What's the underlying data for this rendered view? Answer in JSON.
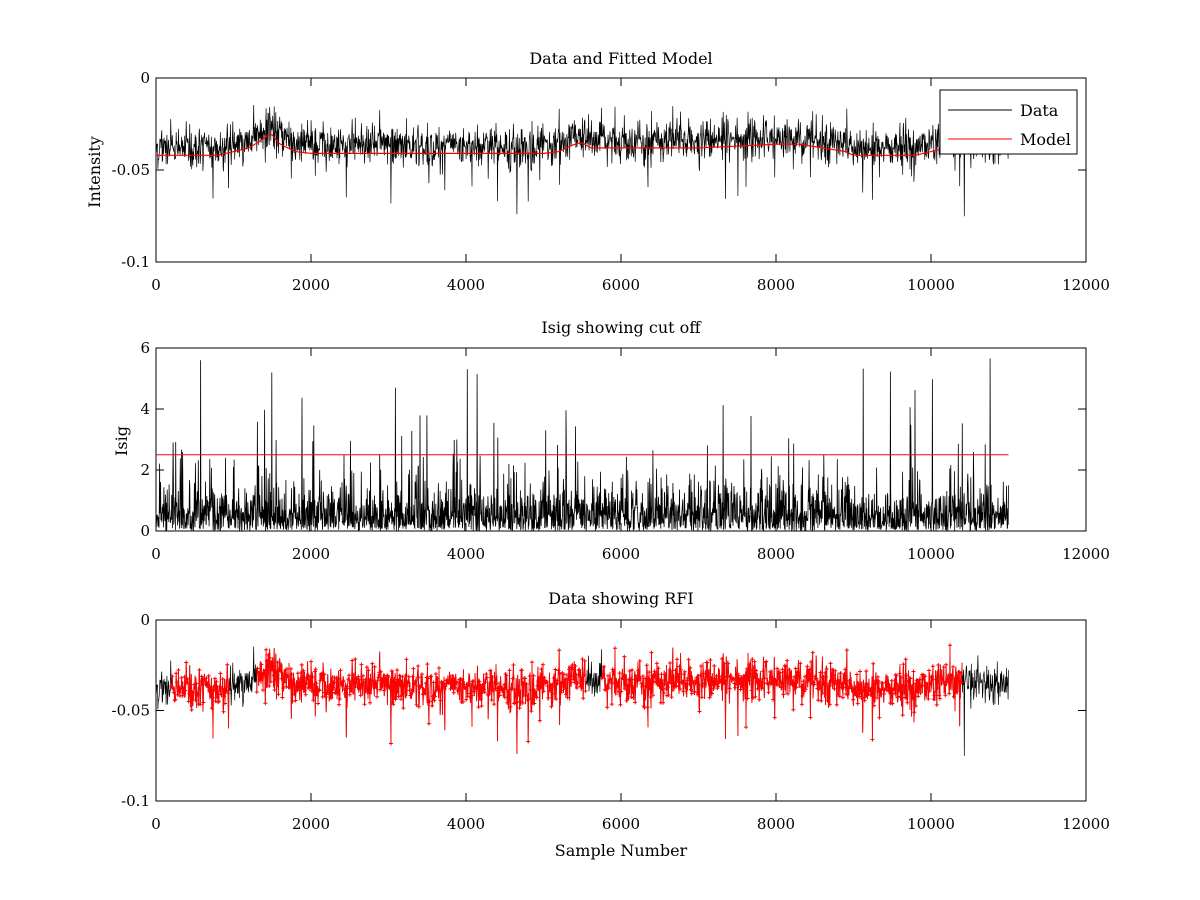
{
  "chart_data": [
    {
      "id": "top",
      "type": "line",
      "title": "Data and Fitted Model",
      "xlabel": "",
      "ylabel": "Intensity",
      "xlim": [
        0,
        12000
      ],
      "ylim": [
        -0.1,
        0
      ],
      "xticks": [
        0,
        2000,
        4000,
        6000,
        8000,
        10000,
        12000
      ],
      "xtick_labels": [
        "0",
        "2000",
        "4000",
        "6000",
        "8000",
        "10000",
        "12000"
      ],
      "yticks": [
        -0.1,
        -0.05,
        0
      ],
      "ytick_labels": [
        "-0.1",
        "-0.05",
        "0"
      ],
      "legend": {
        "position": "top-right",
        "entries": [
          "Data",
          "Model"
        ]
      },
      "series": [
        {
          "name": "Data",
          "color": "#000000",
          "style": "noisy-line",
          "samples": 11000,
          "x_end": 11000,
          "noise": {
            "low": 0.006,
            "high": 0.007,
            "spike_rate": 0.02,
            "spike_depth": 0.035
          }
        },
        {
          "name": "Model",
          "color": "#ff0000",
          "x": [
            0,
            800,
            1000,
            1200,
            1350,
            1480,
            1600,
            1800,
            2000,
            2400,
            3000,
            4000,
            5000,
            5200,
            5400,
            5500,
            5600,
            6000,
            7000,
            8000,
            8300,
            8600,
            8900,
            9000,
            9800,
            10000,
            10100,
            10300
          ],
          "y": [
            -0.042,
            -0.042,
            -0.04,
            -0.038,
            -0.034,
            -0.03,
            -0.036,
            -0.04,
            -0.041,
            -0.041,
            -0.041,
            -0.041,
            -0.041,
            -0.04,
            -0.036,
            -0.035,
            -0.038,
            -0.038,
            -0.038,
            -0.036,
            -0.036,
            -0.038,
            -0.04,
            -0.042,
            -0.042,
            -0.04,
            -0.039,
            -0.039
          ]
        }
      ]
    },
    {
      "id": "middle",
      "type": "line",
      "title": "Isig showing cut off",
      "xlabel": "",
      "ylabel": "Isig",
      "xlim": [
        0,
        12000
      ],
      "ylim": [
        0,
        6
      ],
      "xticks": [
        0,
        2000,
        4000,
        6000,
        8000,
        10000,
        12000
      ],
      "xtick_labels": [
        "0",
        "2000",
        "4000",
        "6000",
        "8000",
        "10000",
        "12000"
      ],
      "yticks": [
        0,
        2,
        4,
        6
      ],
      "ytick_labels": [
        "0",
        "2",
        "4",
        "6"
      ],
      "series": [
        {
          "name": "Isig",
          "color": "#000000",
          "style": "noisy-positive",
          "samples": 11000,
          "x_end": 11000,
          "peak_max": 5.7
        },
        {
          "name": "Cut off",
          "color": "#ff0000",
          "x": [
            0,
            11000
          ],
          "y": [
            2.5,
            2.5
          ]
        }
      ]
    },
    {
      "id": "bottom",
      "type": "line",
      "title": "Data showing RFI",
      "xlabel": "Sample Number",
      "ylabel": "",
      "xlim": [
        0,
        12000
      ],
      "ylim": [
        -0.1,
        0
      ],
      "xticks": [
        0,
        2000,
        4000,
        6000,
        8000,
        10000,
        12000
      ],
      "xtick_labels": [
        "0",
        "2000",
        "4000",
        "6000",
        "8000",
        "10000",
        "12000"
      ],
      "yticks": [
        -0.1,
        -0.05,
        0
      ],
      "ytick_labels": [
        "-0.1",
        "-0.05",
        "0"
      ],
      "series": [
        {
          "name": "Data",
          "color": "#000000",
          "style": "noisy-line",
          "samples": 11000,
          "x_end": 11000
        },
        {
          "name": "RFI",
          "color": "#ff0000",
          "style": "markers",
          "regions": [
            [
              200,
              950
            ],
            [
              1300,
              5550
            ],
            [
              5750,
              10400
            ]
          ]
        }
      ]
    }
  ]
}
